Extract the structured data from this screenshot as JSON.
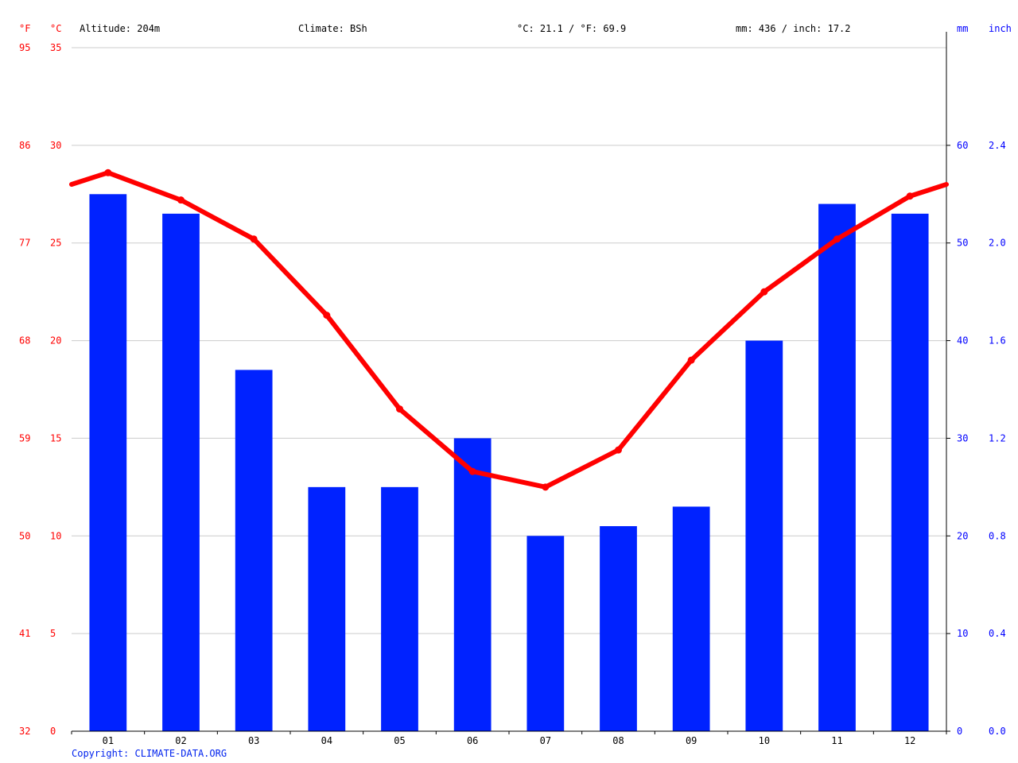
{
  "header": {
    "left_unit_f": "°F",
    "left_unit_c": "°C",
    "altitude": "Altitude: 204m",
    "climate": "Climate: BSh",
    "avg_temp": "°C: 21.1 / °F: 69.9",
    "precip_total": "mm: 436 / inch: 17.2",
    "right_unit_mm": "mm",
    "right_unit_inch": "inch"
  },
  "footer": {
    "copyright": "Copyright: CLIMATE-DATA.ORG"
  },
  "colors": {
    "temperature": "#ff0000",
    "precipitation": "#0022ff",
    "grid": "#cccccc",
    "axis": "#000000",
    "right_axis_text": "#0000ff"
  },
  "chart_data": {
    "type": "bar",
    "categories": [
      "01",
      "02",
      "03",
      "04",
      "05",
      "06",
      "07",
      "08",
      "09",
      "10",
      "11",
      "12"
    ],
    "series": [
      {
        "type": "bar",
        "axis": "right",
        "unit": "mm",
        "values": [
          55,
          53,
          37,
          25,
          25,
          30,
          20,
          21,
          23,
          40,
          54,
          53
        ]
      },
      {
        "type": "line",
        "axis": "left",
        "unit": "°C",
        "values": [
          28.6,
          27.2,
          25.2,
          21.3,
          16.5,
          13.3,
          12.5,
          14.4,
          19.0,
          22.5,
          25.2,
          27.4
        ]
      }
    ],
    "left_axis_c": {
      "ylim": [
        0,
        35
      ],
      "ticks": [
        "0",
        "5",
        "10",
        "15",
        "20",
        "25",
        "30",
        "35"
      ]
    },
    "left_axis_f": {
      "ticks": [
        "32",
        "41",
        "50",
        "59",
        "68",
        "77",
        "86",
        "95"
      ]
    },
    "right_axis_mm": {
      "ylim": [
        0,
        70
      ],
      "ticks": [
        "0",
        "10",
        "20",
        "30",
        "40",
        "50",
        "60"
      ]
    },
    "right_axis_inch": {
      "ticks": [
        "0.0",
        "0.4",
        "0.8",
        "1.2",
        "1.6",
        "2.0",
        "2.4"
      ]
    },
    "grid": true
  }
}
